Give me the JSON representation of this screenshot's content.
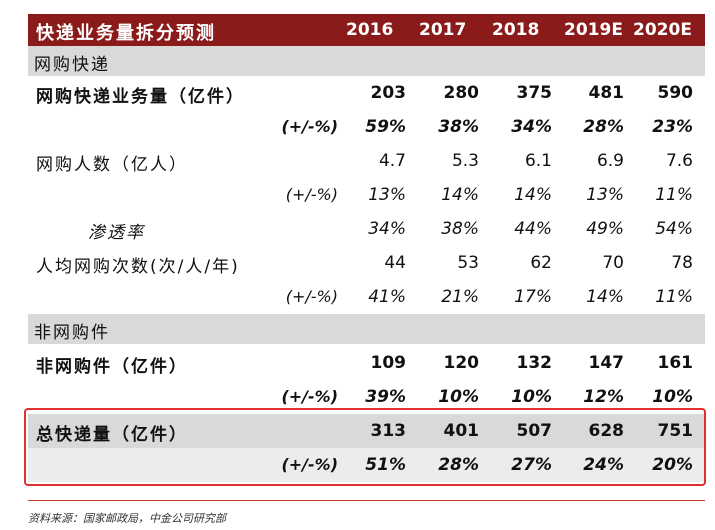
{
  "header": {
    "title": "快递业务量拆分预测",
    "years": [
      "2016",
      "2017",
      "2018",
      "2019E",
      "2020E"
    ]
  },
  "sections": {
    "online": "网购快递",
    "offline": "非网购件"
  },
  "rows": [
    {
      "label": "网购快递业务量（亿件）",
      "sub": "",
      "values": [
        "203",
        "280",
        "375",
        "481",
        "590"
      ]
    },
    {
      "label": "",
      "sub": "(+/-%)",
      "values": [
        "59%",
        "38%",
        "34%",
        "28%",
        "23%"
      ]
    },
    {
      "label": "网购人数（亿人）",
      "sub": "",
      "values": [
        "4.7",
        "5.3",
        "6.1",
        "6.9",
        "7.6"
      ]
    },
    {
      "label": "",
      "sub": "(+/-%)",
      "values": [
        "13%",
        "14%",
        "14%",
        "13%",
        "11%"
      ]
    },
    {
      "label": "渗透率",
      "sub": "",
      "values": [
        "34%",
        "38%",
        "44%",
        "49%",
        "54%"
      ]
    },
    {
      "label": "人均网购次数(次/人/年)",
      "sub": "",
      "values": [
        "44",
        "53",
        "62",
        "70",
        "78"
      ]
    },
    {
      "label": "",
      "sub": "(+/-%)",
      "values": [
        "41%",
        "21%",
        "17%",
        "14%",
        "11%"
      ]
    },
    {
      "label": "非网购件（亿件）",
      "sub": "",
      "values": [
        "109",
        "120",
        "132",
        "147",
        "161"
      ]
    },
    {
      "label": "",
      "sub": "(+/-%)",
      "values": [
        "39%",
        "10%",
        "10%",
        "12%",
        "10%"
      ]
    },
    {
      "label": "总快递量（亿件）",
      "sub": "",
      "values": [
        "313",
        "401",
        "507",
        "628",
        "751"
      ]
    },
    {
      "label": "",
      "sub": "(+/-%)",
      "values": [
        "51%",
        "28%",
        "27%",
        "24%",
        "20%"
      ]
    }
  ],
  "source": "资料来源：国家邮政局，中金公司研究部",
  "colors": {
    "header": "#8b1a1a",
    "highlight_box": "#e03030",
    "section_bg": "#d9d9d9"
  }
}
